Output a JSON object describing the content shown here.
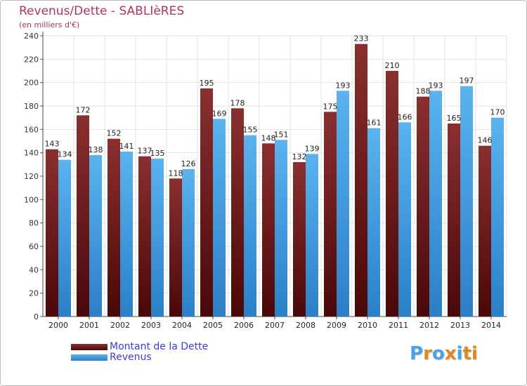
{
  "header": {
    "title": "Revenus/Dette - SABLIèRES",
    "subtitle": "(en milliers d'€)"
  },
  "legend": {
    "items": [
      {
        "label": "Montant de la Dette",
        "color": "#6b1616"
      },
      {
        "label": "Revenus",
        "color": "#4aa3e8"
      }
    ]
  },
  "logo": {
    "text": "Proxiti",
    "colors": [
      "#4aa3e8",
      "#e08a1e",
      "#4aa3e8",
      "#e08a1e",
      "#4aa3e8",
      "#e08a1e",
      "#e08a1e"
    ]
  },
  "colors": {
    "title": "#b0306a",
    "dette_dark": "#5a0e0e",
    "dette_light": "#8b2f2f",
    "revenus_dark": "#2b7fc8",
    "revenus_light": "#5ab3ef"
  },
  "chart_data": {
    "type": "bar",
    "title": "Revenus/Dette - SABLIèRES",
    "subtitle": "(en milliers d'€)",
    "categories": [
      "2000",
      "2001",
      "2002",
      "2003",
      "2004",
      "2005",
      "2006",
      "2007",
      "2008",
      "2009",
      "2010",
      "2011",
      "2012",
      "2013",
      "2014"
    ],
    "series": [
      {
        "name": "Montant de la Dette",
        "values": [
          143,
          172,
          152,
          137,
          118,
          195,
          178,
          148,
          132,
          175,
          233,
          210,
          188,
          165,
          146
        ]
      },
      {
        "name": "Revenus",
        "values": [
          134,
          138,
          141,
          135,
          126,
          169,
          155,
          151,
          139,
          193,
          161,
          166,
          193,
          197,
          170
        ]
      }
    ],
    "ylim": [
      0,
      240
    ],
    "yticks": [
      "0",
      "20",
      "40",
      "60",
      "80",
      "100",
      "120",
      "140",
      "160",
      "180",
      "200",
      "220",
      "240"
    ],
    "grid": true,
    "legend_position": "bottom-left"
  }
}
